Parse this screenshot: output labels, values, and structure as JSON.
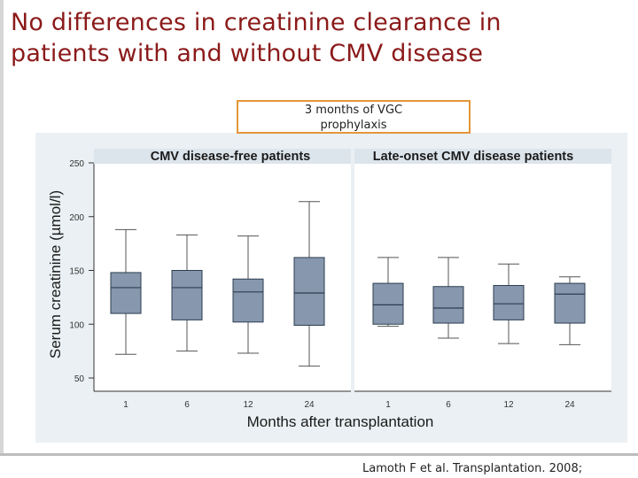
{
  "slide": {
    "title_line1": "No differences in creatinine clearance in",
    "title_line2": "patients with and without CMV disease",
    "callout_line1": "3 months of VGC",
    "callout_line2": "prophylaxis",
    "citation": "Lamoth F et al. Transplantation. 2008;"
  },
  "colors": {
    "title": "#8b1a1a",
    "box_fill": "#8797ad",
    "panel_header": "#dde5ec",
    "chart_bg": "#eaf0f3",
    "callout_border": "#e4963a"
  },
  "chart_data": {
    "type": "box",
    "ylabel": "Serum creatinine (µmol/l)",
    "xlabel": "Months after transplantation",
    "ylim": [
      40,
      255
    ],
    "yticks": [
      50,
      100,
      150,
      200,
      250
    ],
    "panels": [
      {
        "title": "CMV disease-free patients",
        "categories": [
          "1",
          "6",
          "12",
          "24"
        ],
        "boxes": [
          {
            "whisker_low": 72,
            "q1": 110,
            "median": 134,
            "q3": 148,
            "whisker_high": 188
          },
          {
            "whisker_low": 75,
            "q1": 104,
            "median": 134,
            "q3": 150,
            "whisker_high": 183
          },
          {
            "whisker_low": 73,
            "q1": 102,
            "median": 130,
            "q3": 142,
            "whisker_high": 182
          },
          {
            "whisker_low": 61,
            "q1": 99,
            "median": 129,
            "q3": 162,
            "whisker_high": 214
          }
        ]
      },
      {
        "title": "Late-onset CMV disease patients",
        "categories": [
          "1",
          "6",
          "12",
          "24"
        ],
        "boxes": [
          {
            "whisker_low": 98,
            "q1": 100,
            "median": 118,
            "q3": 138,
            "whisker_high": 162
          },
          {
            "whisker_low": 87,
            "q1": 101,
            "median": 115,
            "q3": 135,
            "whisker_high": 162
          },
          {
            "whisker_low": 82,
            "q1": 104,
            "median": 119,
            "q3": 136,
            "whisker_high": 156
          },
          {
            "whisker_low": 81,
            "q1": 101,
            "median": 128,
            "q3": 138,
            "whisker_high": 144
          }
        ]
      }
    ]
  }
}
